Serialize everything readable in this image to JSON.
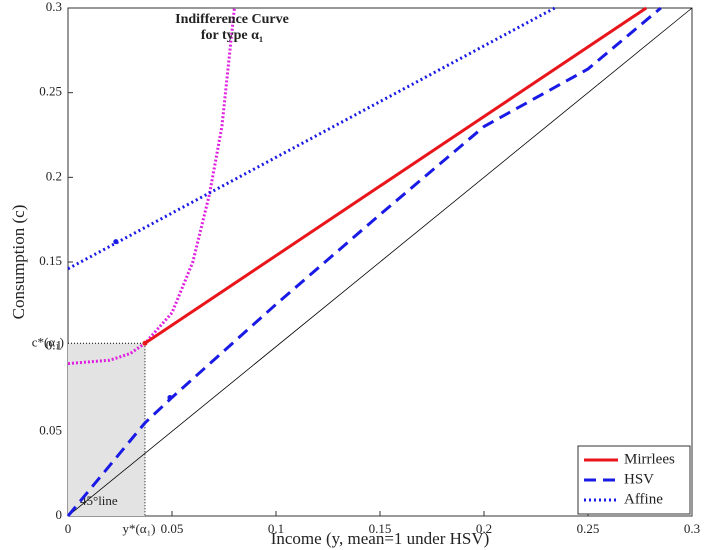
{
  "chart_data": {
    "type": "line",
    "ylabel": "Consumption (c)",
    "xlabel": "Income (y, mean=1 under HSV)",
    "xlim": [
      0,
      0.3
    ],
    "ylim": [
      0,
      0.3
    ],
    "xticks": [
      0,
      0.05,
      0.1,
      0.15,
      0.2,
      0.25,
      0.3
    ],
    "yticks": [
      0,
      0.05,
      0.1,
      0.15,
      0.2,
      0.25,
      0.3
    ],
    "legend": "lower right",
    "series": [
      {
        "name": "Mirrlees",
        "color": "#e8151b",
        "dash": "solid",
        "x": [
          0.037,
          0.278
        ],
        "values": [
          0.102,
          0.3
        ],
        "marker": {
          "x": 0.037,
          "y": 0.102
        }
      },
      {
        "name": "HSV",
        "color": "#1a1ae6",
        "dash": "dashed",
        "x": [
          0,
          0.037,
          0.05,
          0.1,
          0.15,
          0.2,
          0.25,
          0.285
        ],
        "values": [
          0,
          0.055,
          0.07,
          0.125,
          0.178,
          0.23,
          0.264,
          0.3
        ],
        "marker": {
          "x": 0.049,
          "y": 0.07
        }
      },
      {
        "name": "Affine",
        "color": "#1a1ae6",
        "dash": "dotted",
        "x": [
          0,
          0.234
        ],
        "values": [
          0.146,
          0.3
        ],
        "marker": {
          "x": 0.023,
          "y": 0.162
        }
      }
    ],
    "indifference_curve": {
      "color": "#e020e0",
      "x": [
        0,
        0.02,
        0.03,
        0.037,
        0.05,
        0.06,
        0.068,
        0.074,
        0.08
      ],
      "values": [
        0.09,
        0.092,
        0.096,
        0.102,
        0.12,
        0.15,
        0.19,
        0.23,
        0.3
      ],
      "label": [
        "Indifference Curve",
        "for type α₁"
      ]
    },
    "diagonal": {
      "x": [
        0,
        0.3
      ],
      "values": [
        0,
        0.3
      ],
      "label": "45°line"
    },
    "optimum": {
      "x": 0.037,
      "y": 0.102,
      "x_label": "y*(α₁)",
      "y_label": "c*(α₁)"
    }
  }
}
